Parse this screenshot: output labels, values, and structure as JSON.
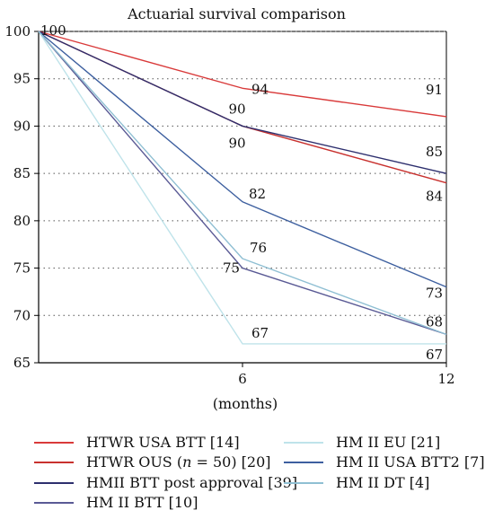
{
  "chart_data": {
    "type": "line",
    "title": "Actuarial survival comparison",
    "xlabel": "(months)",
    "ylabel": "",
    "x": [
      0,
      6,
      12
    ],
    "x_ticks": [
      "6",
      "12"
    ],
    "xlim": [
      0,
      12
    ],
    "ylim": [
      65,
      100
    ],
    "y_ticks": [
      "65",
      "70",
      "75",
      "80",
      "85",
      "90",
      "95",
      "100"
    ],
    "grid": "horizontal dotted",
    "legend_position": "bottom",
    "series": [
      {
        "name": "HTWR USA BTT [14]",
        "values": [
          100,
          94,
          91
        ],
        "color": "#d93a3a"
      },
      {
        "name": "HTWR OUS (n = 50) [20]",
        "values": [
          100,
          90,
          84
        ],
        "color": "#c8312e"
      },
      {
        "name": "HMII BTT post approval [39]",
        "values": [
          100,
          90,
          85
        ],
        "color": "#2d2f6e"
      },
      {
        "name": "HM II BTT [10]",
        "values": [
          100,
          75,
          68
        ],
        "color": "#5a5a95"
      },
      {
        "name": "HM II EU [21]",
        "values": [
          100,
          67,
          67
        ],
        "color": "#bfe3ea"
      },
      {
        "name": "HM II USA BTT2 [7]",
        "values": [
          100,
          82,
          73
        ],
        "color": "#3d5f9f"
      },
      {
        "name": "HM II DT [4]",
        "values": [
          100,
          76,
          68
        ],
        "color": "#8fbfd3"
      }
    ],
    "data_labels": [
      {
        "x": 0,
        "y": 100,
        "text": "100"
      },
      {
        "x": 6,
        "y": 94,
        "text": "94"
      },
      {
        "x": 6,
        "y": 90,
        "text": "90"
      },
      {
        "x": 6,
        "y": 90,
        "text": "90"
      },
      {
        "x": 6,
        "y": 82,
        "text": "82"
      },
      {
        "x": 6,
        "y": 76,
        "text": "76"
      },
      {
        "x": 6,
        "y": 75,
        "text": "75"
      },
      {
        "x": 6,
        "y": 67,
        "text": "67"
      },
      {
        "x": 12,
        "y": 91,
        "text": "91"
      },
      {
        "x": 12,
        "y": 85,
        "text": "85"
      },
      {
        "x": 12,
        "y": 84,
        "text": "84"
      },
      {
        "x": 12,
        "y": 73,
        "text": "73"
      },
      {
        "x": 12,
        "y": 68,
        "text": "68"
      },
      {
        "x": 12,
        "y": 67,
        "text": "67"
      }
    ]
  }
}
